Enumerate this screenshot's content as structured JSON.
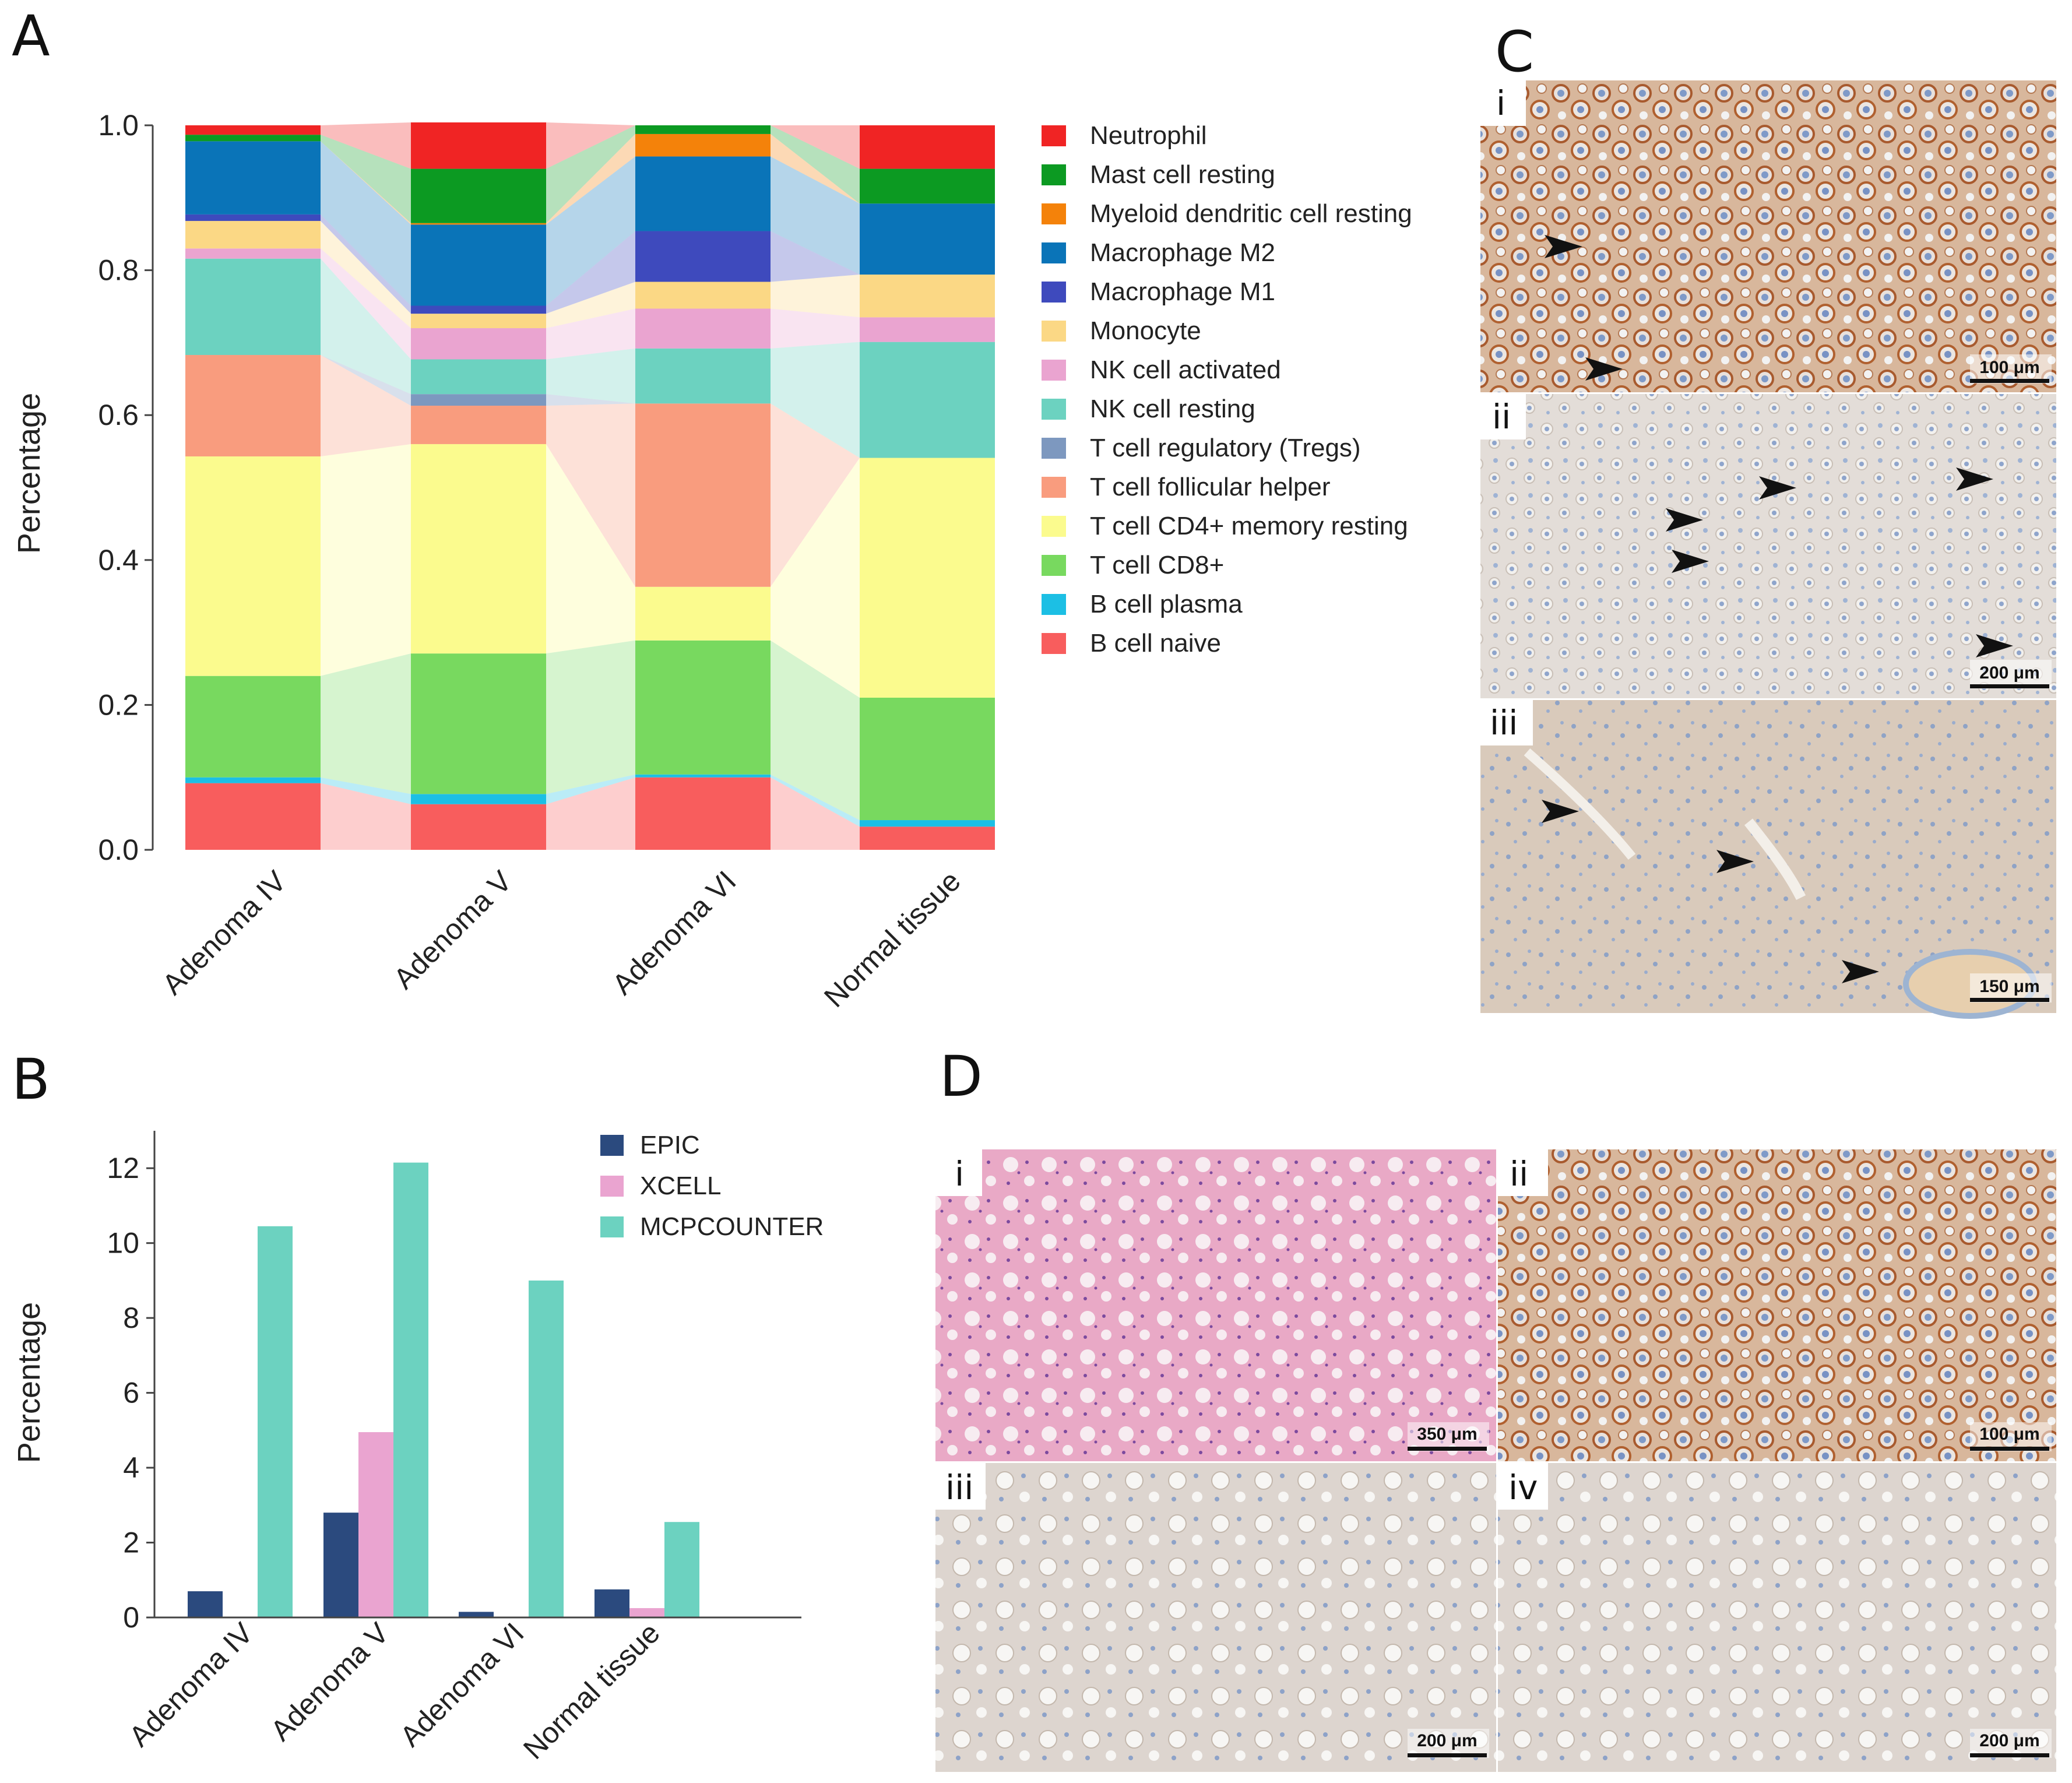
{
  "panel_labels": {
    "a": "A",
    "b": "B",
    "c": "C",
    "d": "D"
  },
  "colors": {
    "Neutrophil": "#f02424",
    "Mast cell resting": "#0c9a22",
    "Myeloid dendritic cell resting": "#f4820a",
    "Macrophage M2": "#0a74b8",
    "Macrophage M1": "#3e4abd",
    "Monocyte": "#fbd885",
    "NK cell activated": "#eaa4d0",
    "NK cell resting": "#6cd2c0",
    "T cell regulatory (Tregs)": "#7d98bf",
    "T cell follicular helper": "#f99c7e",
    "T cell CD4+ memory resting": "#fbfb8e",
    "T cell CD8+": "#78d95f",
    "B cell plasma": "#1cbfe4",
    "B cell naive": "#f85d5d",
    "EPIC": "#2b4a7e",
    "XCELL": "#eaa4d0",
    "MCPCOUNTER": "#6cd2c0"
  },
  "chart_data": [
    {
      "type": "bar",
      "stacked": true,
      "title": "",
      "xlabel": "",
      "ylabel": "Percentage",
      "ylim": [
        0,
        1.0
      ],
      "yticks": [
        "0.0",
        "0.2",
        "0.4",
        "0.6",
        "0.8",
        "1.0"
      ],
      "categories": [
        "Adenoma IV",
        "Adenoma V",
        "Adenoma VI",
        "Normal tissue"
      ],
      "legend_position": "right",
      "series": [
        {
          "name": "B cell naive",
          "values": [
            0.092,
            0.063,
            0.1,
            0.032
          ]
        },
        {
          "name": "B cell plasma",
          "values": [
            0.008,
            0.014,
            0.004,
            0.009
          ]
        },
        {
          "name": "T cell CD8+",
          "values": [
            0.14,
            0.194,
            0.185,
            0.169
          ]
        },
        {
          "name": "T cell CD4+ memory resting",
          "values": [
            0.303,
            0.289,
            0.074,
            0.331
          ]
        },
        {
          "name": "T cell follicular helper",
          "values": [
            0.14,
            0.053,
            0.253,
            0.0
          ]
        },
        {
          "name": "T cell regulatory (Tregs)",
          "values": [
            0.0,
            0.016,
            0.0,
            0.0
          ]
        },
        {
          "name": "NK cell resting",
          "values": [
            0.133,
            0.048,
            0.076,
            0.16
          ]
        },
        {
          "name": "NK cell activated",
          "values": [
            0.014,
            0.043,
            0.055,
            0.034
          ]
        },
        {
          "name": "Monocyte",
          "values": [
            0.038,
            0.02,
            0.037,
            0.059
          ]
        },
        {
          "name": "Macrophage M1",
          "values": [
            0.009,
            0.011,
            0.07,
            0.0
          ]
        },
        {
          "name": "Macrophage M2",
          "values": [
            0.101,
            0.112,
            0.103,
            0.098
          ]
        },
        {
          "name": "Myeloid dendritic cell resting",
          "values": [
            0.0,
            0.002,
            0.031,
            0.0
          ]
        },
        {
          "name": "Mast cell resting",
          "values": [
            0.009,
            0.075,
            0.012,
            0.048
          ]
        },
        {
          "name": "Neutrophil",
          "values": [
            0.013,
            0.064,
            0.0,
            0.06
          ]
        }
      ],
      "legend_order": [
        "Neutrophil",
        "Mast cell resting",
        "Myeloid dendritic cell resting",
        "Macrophage M2",
        "Macrophage M1",
        "Monocyte",
        "NK cell activated",
        "NK cell resting",
        "T cell regulatory (Tregs)",
        "T cell follicular helper",
        "T cell CD4+ memory resting",
        "T cell CD8+",
        "B cell plasma",
        "B cell naive"
      ]
    },
    {
      "type": "bar",
      "stacked": false,
      "title": "",
      "xlabel": "",
      "ylabel": "Percentage",
      "ylim": [
        0,
        13
      ],
      "yticks": [
        "0",
        "2",
        "4",
        "6",
        "8",
        "10",
        "12"
      ],
      "categories": [
        "Adenoma IV",
        "Adenoma V",
        "Adenoma VI",
        "Normal tissue"
      ],
      "legend_position": "top-right",
      "series": [
        {
          "name": "EPIC",
          "values": [
            0.7,
            2.8,
            0.15,
            0.75
          ]
        },
        {
          "name": "XCELL",
          "values": [
            0.0,
            4.95,
            0.0,
            0.25
          ]
        },
        {
          "name": "MCPCOUNTER",
          "values": [
            10.45,
            12.15,
            9.0,
            2.55
          ]
        }
      ]
    }
  ],
  "micrographs": {
    "c": [
      {
        "label": "i",
        "scale": "100 μm"
      },
      {
        "label": "ii",
        "scale": "200 μm"
      },
      {
        "label": "iii",
        "scale": "150 μm"
      }
    ],
    "d": [
      {
        "label": "i",
        "scale": "350 μm"
      },
      {
        "label": "ii",
        "scale": "100 μm"
      },
      {
        "label": "iii",
        "scale": "200 μm"
      },
      {
        "label": "iv",
        "scale": "200 μm"
      }
    ]
  }
}
